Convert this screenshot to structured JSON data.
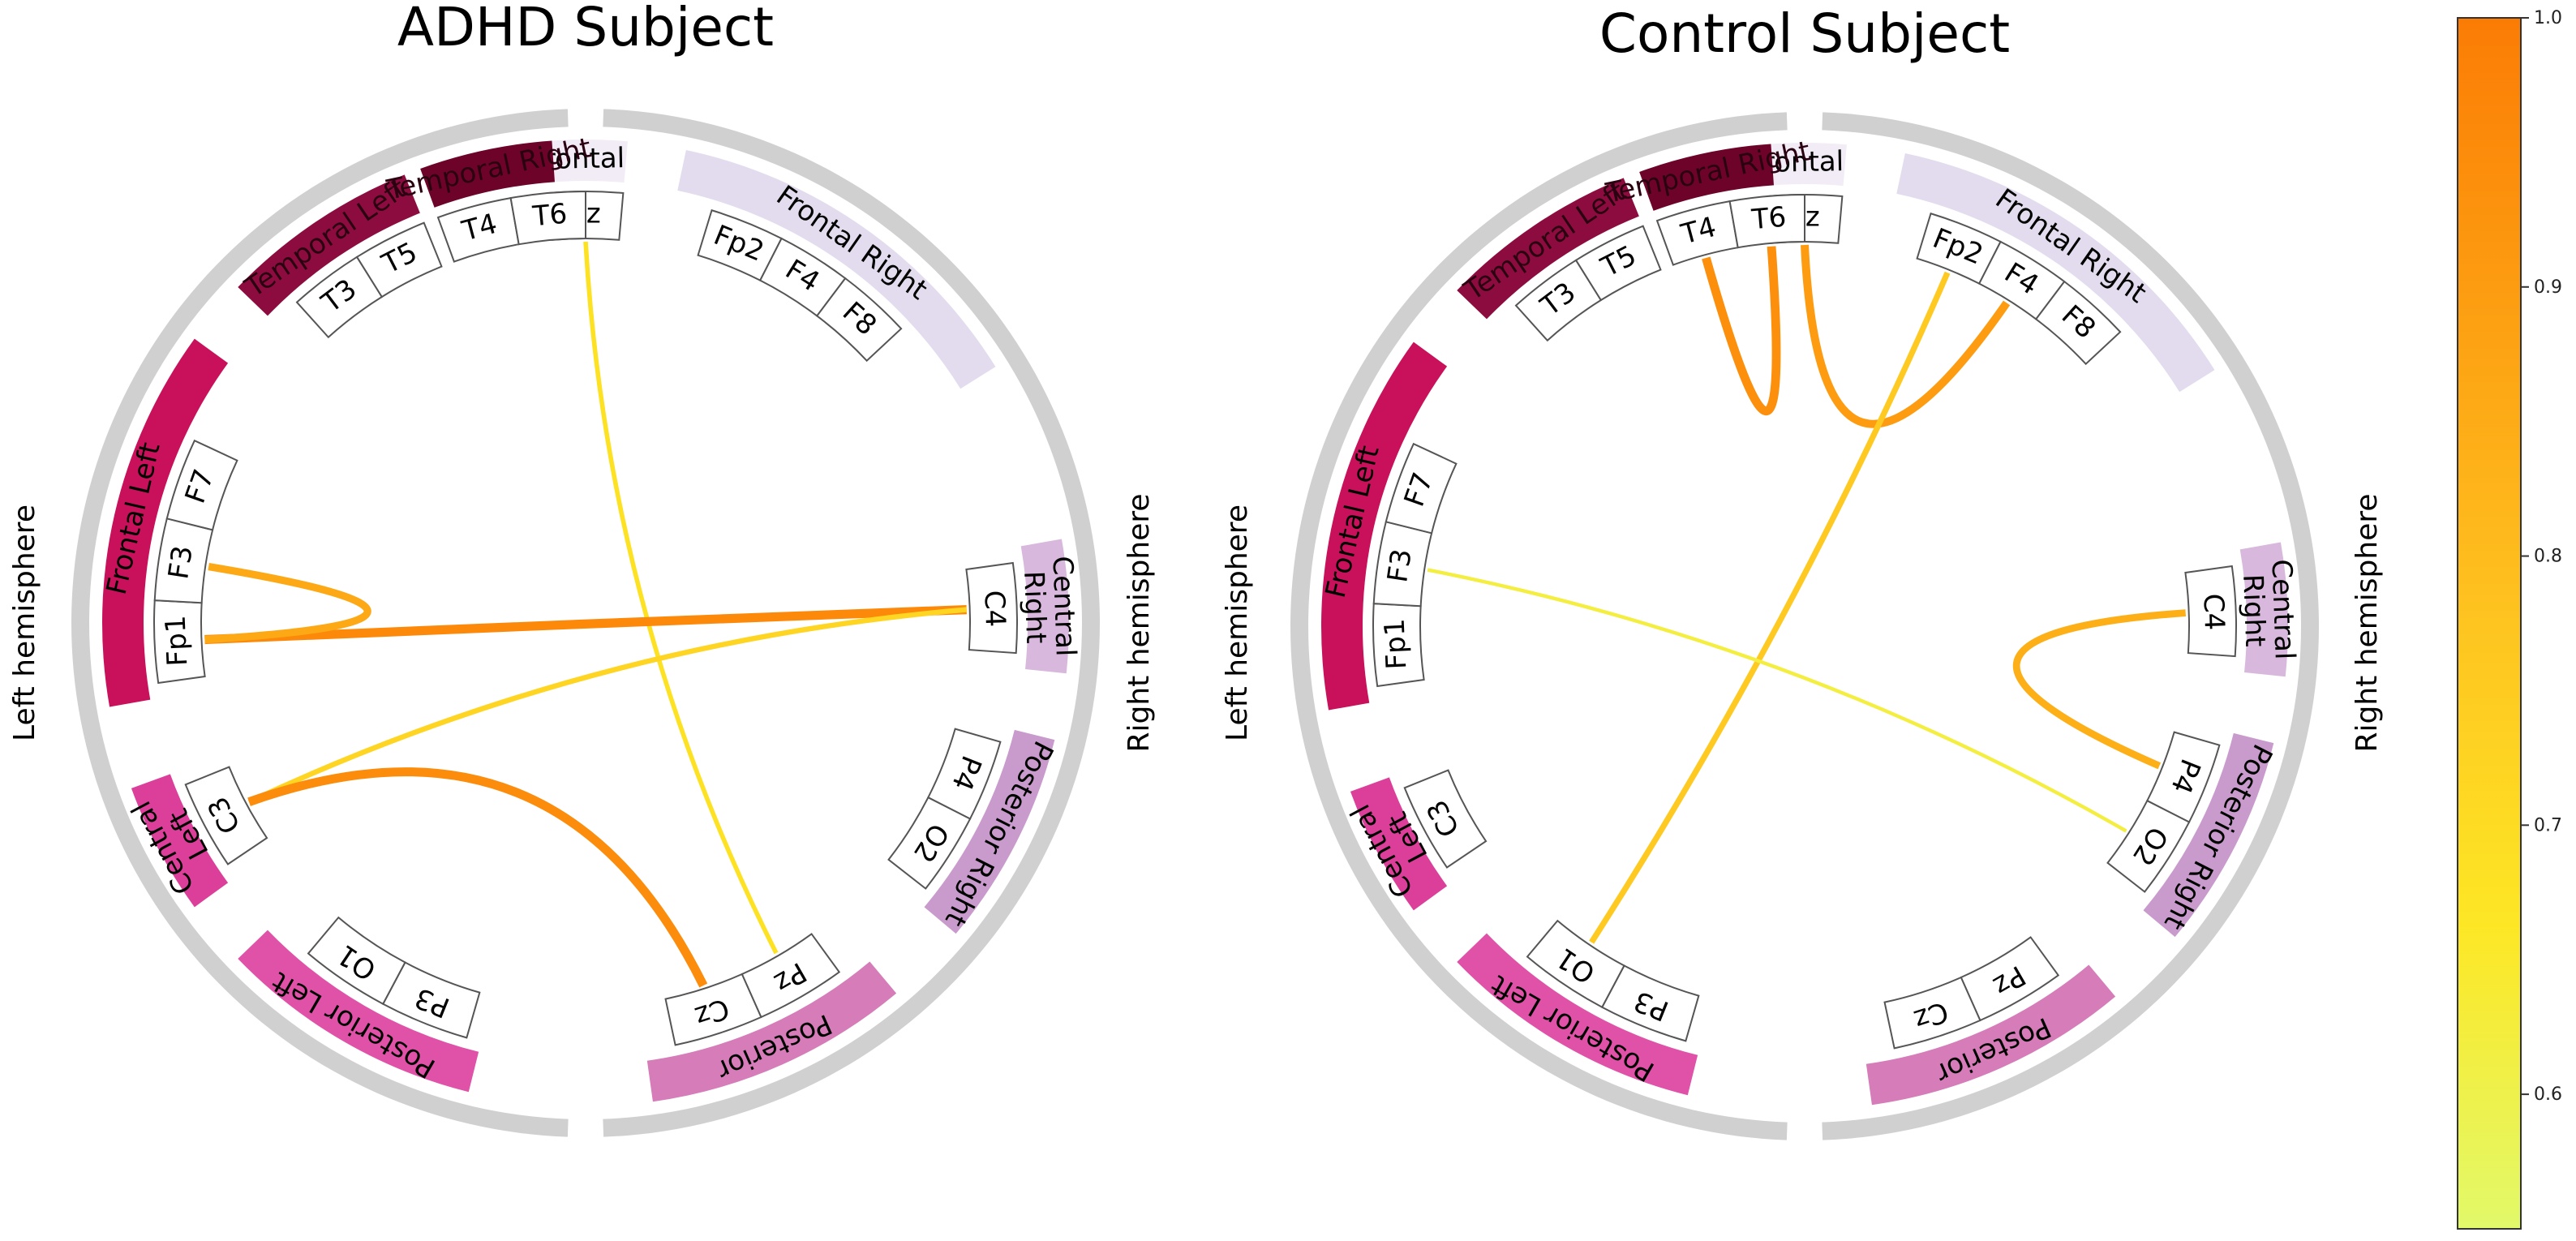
{
  "colors": {
    "ring": "#d0d0d0",
    "box_stroke": "#555555",
    "colormap": [
      "#e2f96a",
      "#fde725",
      "#fec420",
      "#fda012",
      "#fb7c05"
    ]
  },
  "legend": {
    "ticks": [
      "1.0",
      "0.9",
      "0.8",
      "0.7",
      "0.6"
    ],
    "tick_values": [
      1.0,
      0.9,
      0.8,
      0.7,
      0.6
    ],
    "vmin": 0.55,
    "vmax": 1.0
  },
  "panels": [
    {
      "title": "ADHD Subject",
      "left_label": "Left hemisphere",
      "right_label": "Right hemisphere",
      "regions": [
        {
          "name": "Frontal",
          "label_lines": [
            "Frontal"
          ],
          "color": "#f2ecf6",
          "text_color": "#000000",
          "electrodes": [
            "Fz"
          ]
        },
        {
          "name": "Frontal Right",
          "label_lines": [
            "Frontal Right"
          ],
          "color": "#e3dbee",
          "text_color": "#000000",
          "electrodes": [
            "Fp2",
            "F4",
            "F8"
          ]
        },
        {
          "name": "Central Right",
          "label_lines": [
            "Central",
            "Right"
          ],
          "color": "#d8b8dc",
          "text_color": "#000000",
          "electrodes": [
            "C4"
          ]
        },
        {
          "name": "Posterior Right",
          "label_lines": [
            "Posterior Right"
          ],
          "color": "#c99bcd",
          "text_color": "#000000",
          "electrodes": [
            "P4",
            "O2"
          ]
        },
        {
          "name": "Posterior",
          "label_lines": [
            "Posterior"
          ],
          "color": "#d57cb9",
          "text_color": "#000000",
          "electrodes": [
            "Pz",
            "Cz"
          ]
        },
        {
          "name": "Posterior Left",
          "label_lines": [
            "Posterior Left"
          ],
          "color": "#e052a8",
          "text_color": "#000000",
          "electrodes": [
            "P3",
            "O1"
          ]
        },
        {
          "name": "Central Left",
          "label_lines": [
            "Central",
            "Left"
          ],
          "color": "#dc3f9a",
          "text_color": "#000000",
          "electrodes": [
            "C3"
          ]
        },
        {
          "name": "Frontal Left",
          "label_lines": [
            "Frontal Left"
          ],
          "color": "#c8115a",
          "text_color": "#000000",
          "electrodes": [
            "Fp1",
            "F3",
            "F7"
          ]
        },
        {
          "name": "Temporal Left",
          "label_lines": [
            "Temporal Left"
          ],
          "color": "#8d0c40",
          "text_color": "#000000",
          "electrodes": [
            "T3",
            "T5"
          ]
        },
        {
          "name": "Temporal Right",
          "label_lines": [
            "Temporal Right"
          ],
          "color": "#6d0329",
          "text_color": "#000000",
          "electrodes": [
            "T4",
            "T6"
          ]
        }
      ],
      "connections": [
        {
          "from": "Fz",
          "to": "Pz",
          "value": 0.68
        },
        {
          "from": "C4",
          "to": "Fp1",
          "value": 0.96
        },
        {
          "from": "C4",
          "to": "C3",
          "value": 0.72
        },
        {
          "from": "F3",
          "to": "Fp1",
          "value": 0.86
        },
        {
          "from": "C3",
          "to": "Cz",
          "value": 0.95
        }
      ]
    },
    {
      "title": "Control Subject",
      "left_label": "Left hemisphere",
      "right_label": "Right hemisphere",
      "regions": [
        {
          "name": "Frontal",
          "label_lines": [
            "Frontal"
          ],
          "color": "#f2ecf6",
          "text_color": "#000000",
          "electrodes": [
            "Fz"
          ]
        },
        {
          "name": "Frontal Right",
          "label_lines": [
            "Frontal Right"
          ],
          "color": "#e3dbee",
          "text_color": "#000000",
          "electrodes": [
            "Fp2",
            "F4",
            "F8"
          ]
        },
        {
          "name": "Central Right",
          "label_lines": [
            "Central",
            "Right"
          ],
          "color": "#d8b8dc",
          "text_color": "#000000",
          "electrodes": [
            "C4"
          ]
        },
        {
          "name": "Posterior Right",
          "label_lines": [
            "Posterior Right"
          ],
          "color": "#c99bcd",
          "text_color": "#000000",
          "electrodes": [
            "P4",
            "O2"
          ]
        },
        {
          "name": "Posterior",
          "label_lines": [
            "Posterior"
          ],
          "color": "#d57cb9",
          "text_color": "#000000",
          "electrodes": [
            "Pz",
            "Cz"
          ]
        },
        {
          "name": "Posterior Left",
          "label_lines": [
            "Posterior Left"
          ],
          "color": "#e052a8",
          "text_color": "#000000",
          "electrodes": [
            "P3",
            "O1"
          ]
        },
        {
          "name": "Central Left",
          "label_lines": [
            "Central",
            "Left"
          ],
          "color": "#dc3f9a",
          "text_color": "#000000",
          "electrodes": [
            "C3"
          ]
        },
        {
          "name": "Frontal Left",
          "label_lines": [
            "Frontal Left"
          ],
          "color": "#c8115a",
          "text_color": "#000000",
          "electrodes": [
            "Fp1",
            "F3",
            "F7"
          ]
        },
        {
          "name": "Temporal Left",
          "label_lines": [
            "Temporal Left"
          ],
          "color": "#8d0c40",
          "text_color": "#000000",
          "electrodes": [
            "T3",
            "T5"
          ]
        },
        {
          "name": "Temporal Right",
          "label_lines": [
            "Temporal Right"
          ],
          "color": "#6d0329",
          "text_color": "#000000",
          "electrodes": [
            "T4",
            "T6"
          ]
        }
      ],
      "connections": [
        {
          "from": "T4",
          "to": "T6",
          "value": 0.94
        },
        {
          "from": "Fz",
          "to": "F4",
          "value": 0.9
        },
        {
          "from": "Fp2",
          "to": "O1",
          "value": 0.76
        },
        {
          "from": "C4",
          "to": "P4",
          "value": 0.84
        },
        {
          "from": "F3",
          "to": "O2",
          "value": 0.62
        }
      ]
    }
  ]
}
